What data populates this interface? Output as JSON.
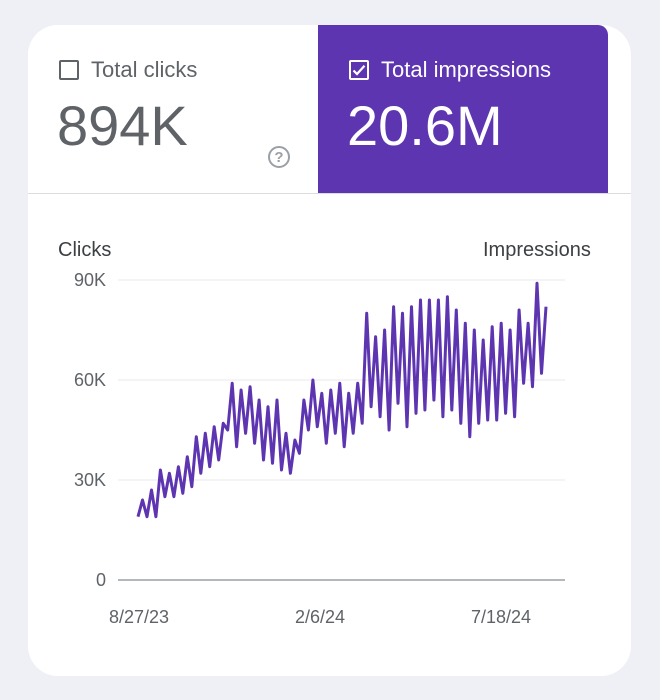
{
  "metrics": {
    "clicks": {
      "label": "Total clicks",
      "value": "894K",
      "checked": false
    },
    "impressions": {
      "label": "Total impressions",
      "value": "20.6M",
      "checked": true
    },
    "help_glyph": "?"
  },
  "colors": {
    "accent": "#5e35b1",
    "series": "#5e35b1",
    "grid": "#e8eaed",
    "baseline": "#9aa0a6"
  },
  "chart_data": {
    "type": "line",
    "left_axis_label": "Clicks",
    "right_axis_label": "Impressions",
    "y_ticks": [
      "90K",
      "60K",
      "30K",
      "0"
    ],
    "y_tick_values": [
      90000,
      60000,
      30000,
      0
    ],
    "x_ticks": [
      "8/27/23",
      "2/6/24",
      "7/18/24"
    ],
    "x_tick_dates": [
      "2023-08-27",
      "2024-02-06",
      "2024-07-18"
    ],
    "ylim": [
      0,
      90000
    ],
    "series": [
      {
        "values": [
          19000,
          24000,
          19000,
          27000,
          19000,
          33000,
          25000,
          32000,
          25000,
          34000,
          26000,
          37000,
          28000,
          43000,
          32000,
          44000,
          34000,
          46000,
          36000,
          47000,
          45000,
          59000,
          40000,
          57000,
          44000,
          58000,
          41000,
          54000,
          36000,
          52000,
          35000,
          54000,
          33000,
          44000,
          32000,
          42000,
          38000,
          54000,
          45000,
          60000,
          46000,
          56000,
          41000,
          57000,
          44000,
          59000,
          40000,
          56000,
          44000,
          59000,
          47000,
          80000,
          52000,
          73000,
          49000,
          75000,
          45000,
          82000,
          53000,
          80000,
          46000,
          82000,
          50000,
          84000,
          51000,
          84000,
          54000,
          84000,
          49000,
          85000,
          51000,
          81000,
          47000,
          77000,
          43000,
          75000,
          47000,
          72000,
          48000,
          76000,
          48000,
          77000,
          50000,
          75000,
          49000,
          81000,
          59000,
          77000,
          58000,
          89000,
          62000,
          82000
        ]
      }
    ]
  }
}
